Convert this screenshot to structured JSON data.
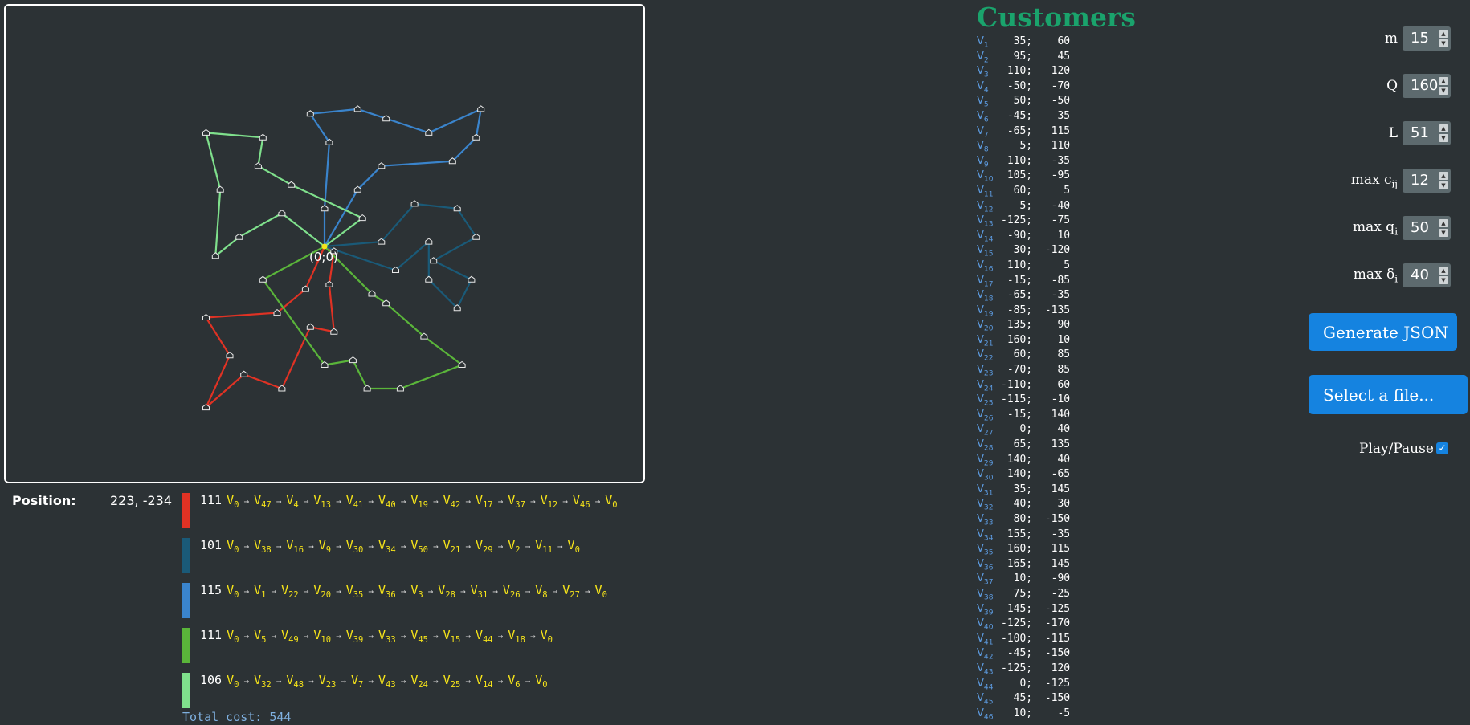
{
  "canvas": {
    "origin_label": "(0;0)"
  },
  "position": {
    "label": "Position:",
    "value": "223, -234"
  },
  "colors": {
    "route1": "#e03224",
    "route2": "#1a5a78",
    "route3": "#3a84cc",
    "route4": "#5ab53a",
    "route5": "#7fe08c",
    "accent": "#1583e0",
    "title": "#1aa36c"
  },
  "routes": [
    {
      "cost": "111",
      "stops": [
        0,
        47,
        4,
        13,
        41,
        40,
        19,
        42,
        17,
        37,
        12,
        46,
        0
      ]
    },
    {
      "cost": "101",
      "stops": [
        0,
        38,
        16,
        9,
        30,
        34,
        50,
        21,
        29,
        2,
        11,
        0
      ]
    },
    {
      "cost": "115",
      "stops": [
        0,
        1,
        22,
        20,
        35,
        36,
        3,
        28,
        31,
        26,
        8,
        27,
        0
      ]
    },
    {
      "cost": "111",
      "stops": [
        0,
        5,
        49,
        10,
        39,
        33,
        45,
        15,
        44,
        18,
        0
      ]
    },
    {
      "cost": "106",
      "stops": [
        0,
        32,
        48,
        23,
        7,
        43,
        24,
        25,
        14,
        6,
        0
      ]
    }
  ],
  "total_cost": "Total cost: 544",
  "customers_title": "Customers",
  "customers": [
    [
      "1",
      "35;",
      "60"
    ],
    [
      "2",
      "95;",
      "45"
    ],
    [
      "3",
      "110;",
      "120"
    ],
    [
      "4",
      "-50;",
      "-70"
    ],
    [
      "5",
      "50;",
      "-50"
    ],
    [
      "6",
      "-45;",
      "35"
    ],
    [
      "7",
      "-65;",
      "115"
    ],
    [
      "8",
      "5;",
      "110"
    ],
    [
      "9",
      "110;",
      "-35"
    ],
    [
      "10",
      "105;",
      "-95"
    ],
    [
      "11",
      "60;",
      "5"
    ],
    [
      "12",
      "5;",
      "-40"
    ],
    [
      "13",
      "-125;",
      "-75"
    ],
    [
      "14",
      "-90;",
      "10"
    ],
    [
      "15",
      "30;",
      "-120"
    ],
    [
      "16",
      "110;",
      "5"
    ],
    [
      "17",
      "-15;",
      "-85"
    ],
    [
      "18",
      "-65;",
      "-35"
    ],
    [
      "19",
      "-85;",
      "-135"
    ],
    [
      "20",
      "135;",
      "90"
    ],
    [
      "21",
      "160;",
      "10"
    ],
    [
      "22",
      "60;",
      "85"
    ],
    [
      "23",
      "-70;",
      "85"
    ],
    [
      "24",
      "-110;",
      "60"
    ],
    [
      "25",
      "-115;",
      "-10"
    ],
    [
      "26",
      "-15;",
      "140"
    ],
    [
      "27",
      "0;",
      "40"
    ],
    [
      "28",
      "65;",
      "135"
    ],
    [
      "29",
      "140;",
      "40"
    ],
    [
      "30",
      "140;",
      "-65"
    ],
    [
      "31",
      "35;",
      "145"
    ],
    [
      "32",
      "40;",
      "30"
    ],
    [
      "33",
      "80;",
      "-150"
    ],
    [
      "34",
      "155;",
      "-35"
    ],
    [
      "35",
      "160;",
      "115"
    ],
    [
      "36",
      "165;",
      "145"
    ],
    [
      "37",
      "10;",
      "-90"
    ],
    [
      "38",
      "75;",
      "-25"
    ],
    [
      "39",
      "145;",
      "-125"
    ],
    [
      "40",
      "-125;",
      "-170"
    ],
    [
      "41",
      "-100;",
      "-115"
    ],
    [
      "42",
      "-45;",
      "-150"
    ],
    [
      "43",
      "-125;",
      "120"
    ],
    [
      "44",
      "0;",
      "-125"
    ],
    [
      "45",
      "45;",
      "-150"
    ],
    [
      "46",
      "10;",
      "-5"
    ]
  ],
  "params": [
    {
      "label": "m",
      "value": "15"
    },
    {
      "label": "Q",
      "value": "160"
    },
    {
      "label": "L",
      "value": "51"
    },
    {
      "label": "max c",
      "sub": "ij",
      "value": "12"
    },
    {
      "label": "max q",
      "sub": "i",
      "value": "50"
    },
    {
      "label": "max δ",
      "sub": "i",
      "value": "40"
    }
  ],
  "buttons": {
    "generate": "Generate JSON",
    "select_file": "Select a file..."
  },
  "play_pause": {
    "label": "Play/Pause",
    "checked": true
  }
}
